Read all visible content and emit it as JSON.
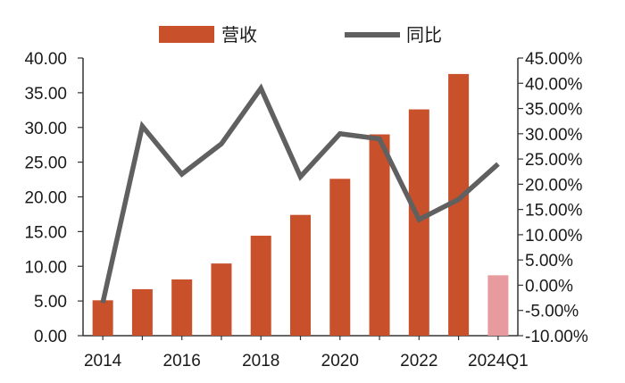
{
  "chart_data": {
    "type": "bar+line",
    "categories": [
      "2014",
      "2015",
      "2016",
      "2017",
      "2018",
      "2019",
      "2020",
      "2021",
      "2022",
      "2023",
      "2024Q1"
    ],
    "x_tick_labels": [
      "2014",
      "",
      "2016",
      "",
      "2018",
      "",
      "2020",
      "",
      "2022",
      "",
      "2024Q1"
    ],
    "series": [
      {
        "name": "营收",
        "type": "bar",
        "axis": "left",
        "values": [
          5.1,
          6.7,
          8.1,
          10.4,
          14.4,
          17.4,
          22.6,
          29.0,
          32.6,
          37.7,
          8.7
        ],
        "color": "#c8502a",
        "highlight_last_color": "#e79b9e"
      },
      {
        "name": "同比",
        "type": "line",
        "axis": "right",
        "values": [
          -3.5,
          31.5,
          22.0,
          28.0,
          39.0,
          21.5,
          30.0,
          29.0,
          13.0,
          17.0,
          24.0
        ],
        "color": "#606060"
      }
    ],
    "y_left": {
      "min": 0,
      "max": 40,
      "step": 5,
      "tick_labels": [
        "0.00",
        "5.00",
        "10.00",
        "15.00",
        "20.00",
        "25.00",
        "30.00",
        "35.00",
        "40.00"
      ]
    },
    "y_right": {
      "min": -10,
      "max": 45,
      "step": 5,
      "tick_labels": [
        "-10.00%",
        "-5.00%",
        "0.00%",
        "5.00%",
        "10.00%",
        "15.00%",
        "20.00%",
        "25.00%",
        "30.00%",
        "35.00%",
        "40.00%",
        "45.00%"
      ]
    },
    "legend": {
      "placement": "top-center",
      "items": [
        "营收",
        "同比"
      ]
    },
    "grid": false
  }
}
